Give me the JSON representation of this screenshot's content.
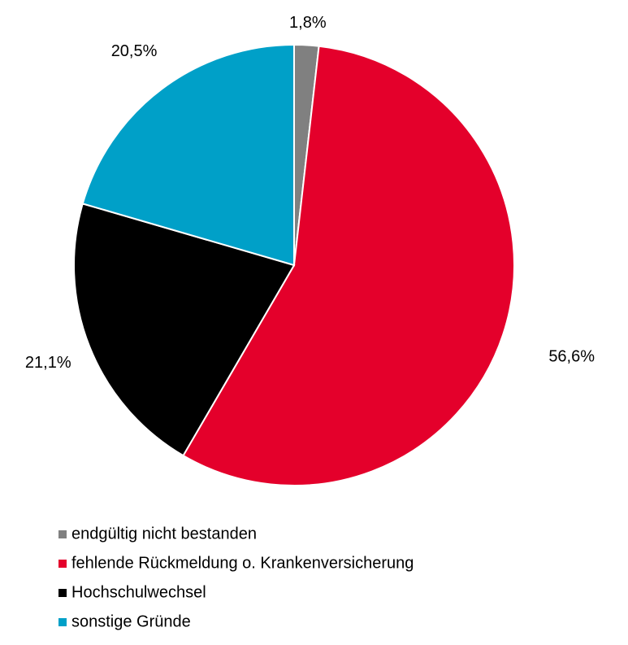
{
  "chart_data": {
    "type": "pie",
    "categories": [
      "endgültig nicht bestanden",
      "fehlende Rückmeldung o. Krankenversicherung",
      "Hochschulwechsel",
      "sonstige Gründe"
    ],
    "values": [
      1.8,
      56.6,
      21.1,
      20.5
    ],
    "value_labels": [
      "1,8%",
      "56,6%",
      "21,1%",
      "20,5%"
    ],
    "colors": [
      "#808080",
      "#e4002b",
      "#000000",
      "#00a0c8"
    ],
    "legend": "bottom"
  }
}
